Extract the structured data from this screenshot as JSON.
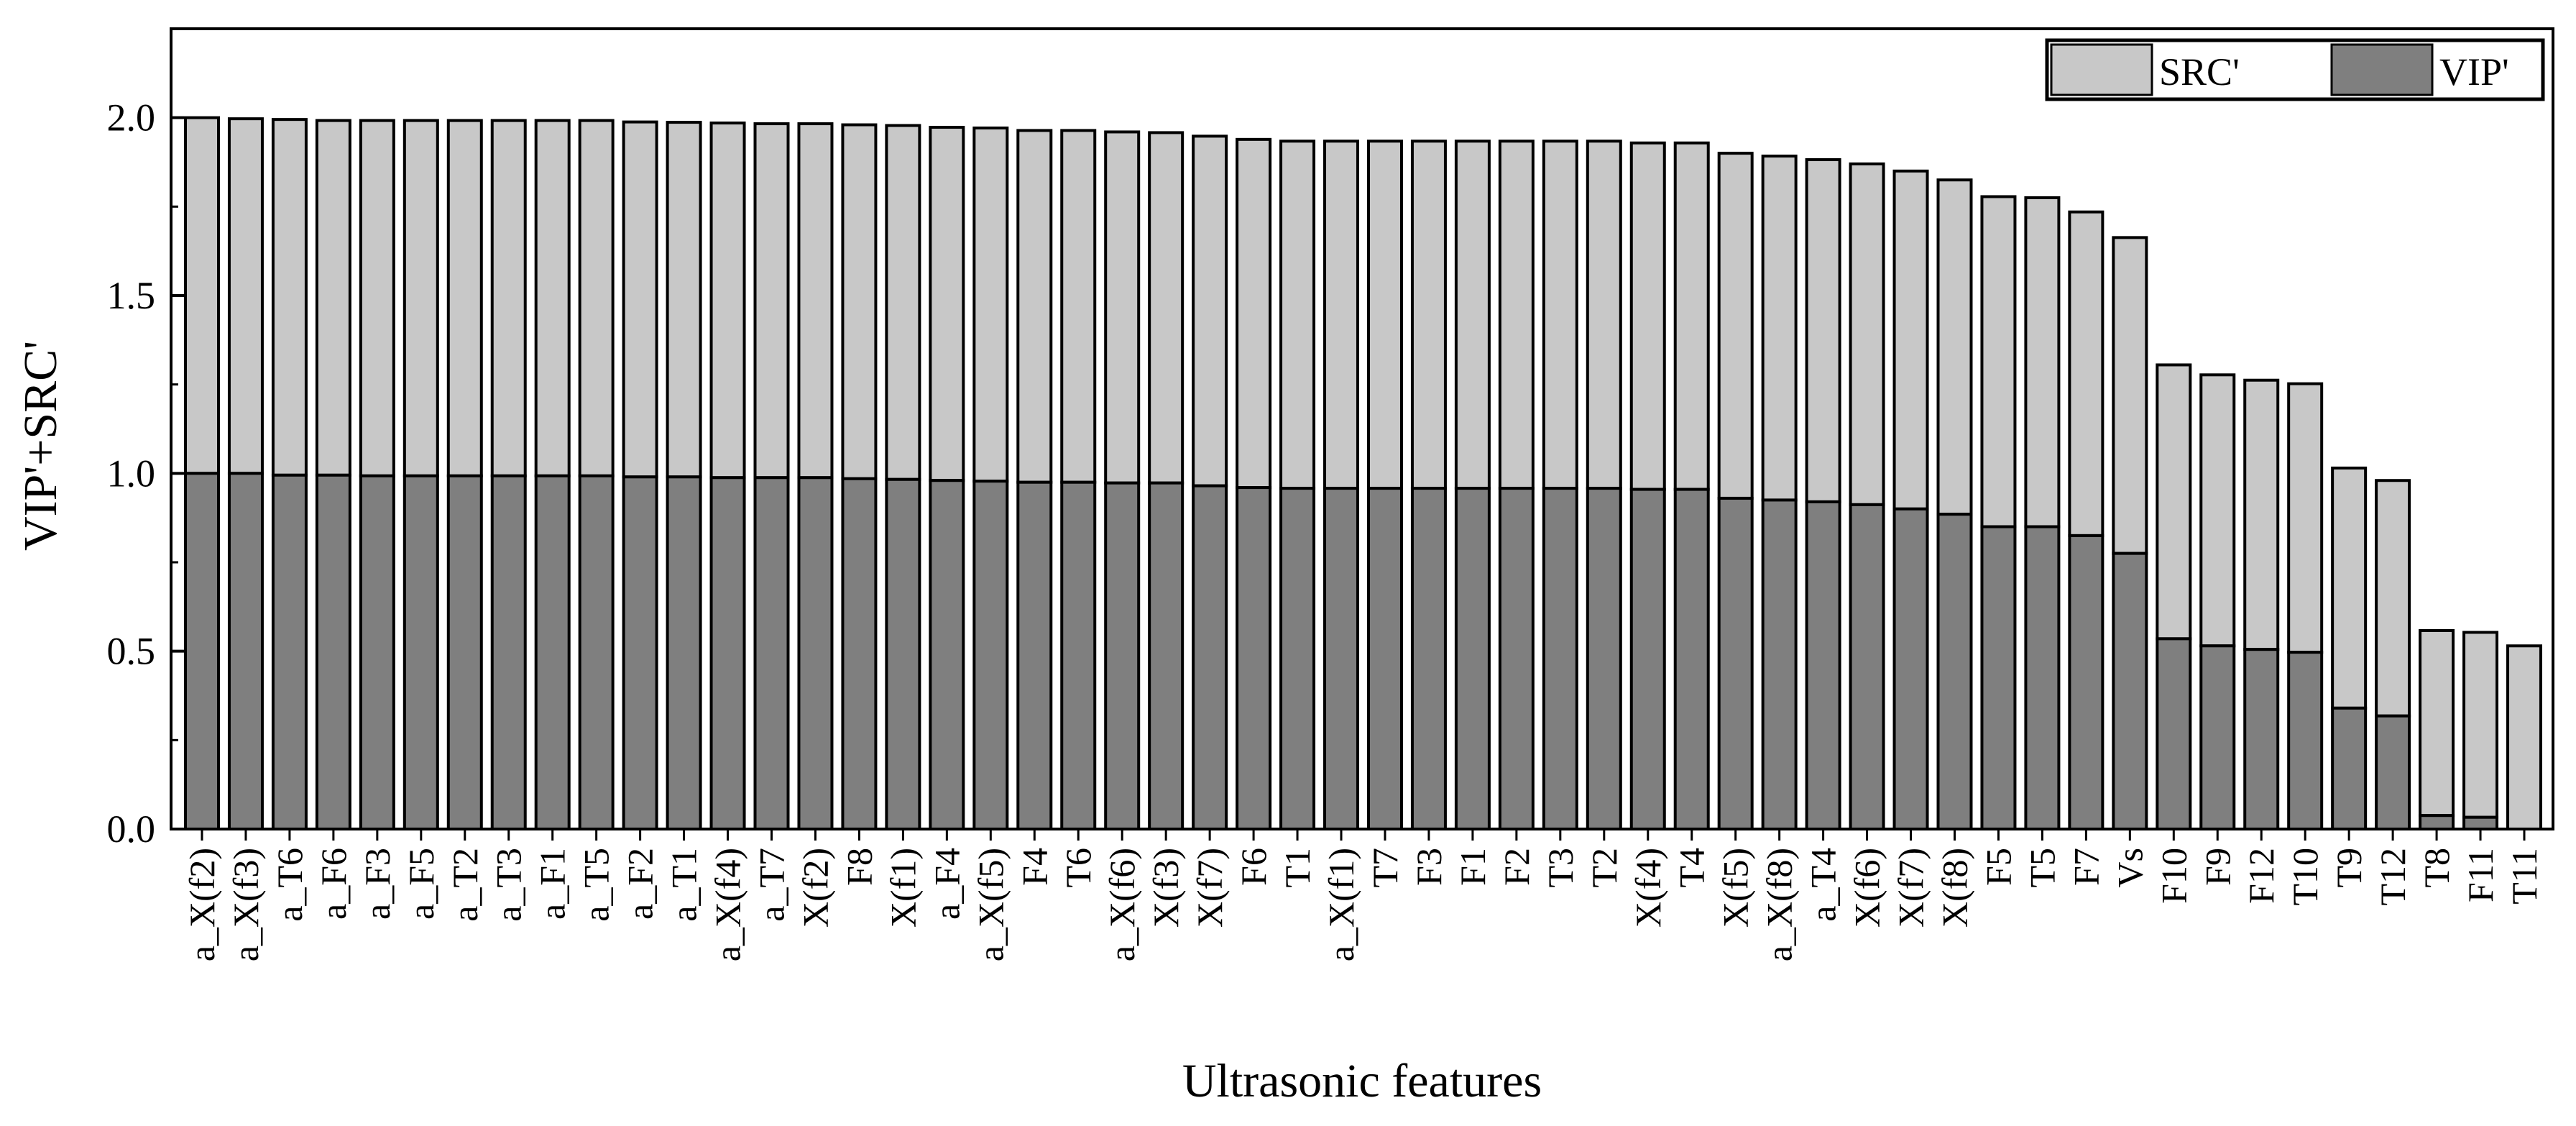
{
  "chart_data": {
    "type": "bar",
    "stacked": true,
    "title": "",
    "xlabel": "Ultrasonic features",
    "ylabel": "VIP'+SRC'",
    "ylim": [
      0,
      2.25
    ],
    "yticks": [
      "0.0",
      "0.5",
      "1.0",
      "1.5",
      "2.0"
    ],
    "grid": false,
    "legend_position": "top-right",
    "categories": [
      "a_X(f2)",
      "a_X(f3)",
      "a_T6",
      "a_F6",
      "a_F3",
      "a_F5",
      "a_T2",
      "a_T3",
      "a_F1",
      "a_T5",
      "a_F2",
      "a_T1",
      "a_X(f4)",
      "a_T7",
      "X(f2)",
      "F8",
      "X(f1)",
      "a_F4",
      "a_X(f5)",
      "F4",
      "T6",
      "a_X(f6)",
      "X(f3)",
      "X(f7)",
      "F6",
      "T1",
      "a_X(f1)",
      "T7",
      "F3",
      "F1",
      "F2",
      "T3",
      "T2",
      "X(f4)",
      "T4",
      "X(f5)",
      "a_X(f8)",
      "a_T4",
      "X(f6)",
      "X(f7)",
      "X(f8)",
      "F5",
      "T5",
      "F7",
      "Vs",
      "F10",
      "F9",
      "F12",
      "T10",
      "T9",
      "T12",
      "T8",
      "F11",
      "T11"
    ],
    "series": [
      {
        "name": "VIP'",
        "color": "#7f7f7f",
        "values": [
          1.0,
          1.0,
          0.995,
          0.995,
          0.993,
          0.993,
          0.993,
          0.993,
          0.993,
          0.993,
          0.99,
          0.99,
          0.988,
          0.988,
          0.988,
          0.985,
          0.983,
          0.98,
          0.978,
          0.975,
          0.975,
          0.973,
          0.973,
          0.965,
          0.96,
          0.958,
          0.958,
          0.958,
          0.958,
          0.958,
          0.958,
          0.958,
          0.958,
          0.955,
          0.955,
          0.93,
          0.925,
          0.92,
          0.912,
          0.9,
          0.885,
          0.85,
          0.85,
          0.825,
          0.775,
          0.535,
          0.515,
          0.505,
          0.497,
          0.34,
          0.318,
          0.038,
          0.033,
          0.0
        ]
      },
      {
        "name": "SRC'",
        "color": "#c8c8c8",
        "values": [
          1.0,
          0.997,
          1.0,
          0.997,
          0.999,
          0.999,
          0.999,
          0.999,
          0.999,
          0.999,
          0.998,
          0.997,
          0.997,
          0.995,
          0.995,
          0.995,
          0.995,
          0.993,
          0.993,
          0.989,
          0.989,
          0.987,
          0.985,
          0.983,
          0.979,
          0.976,
          0.976,
          0.976,
          0.976,
          0.976,
          0.976,
          0.976,
          0.976,
          0.974,
          0.974,
          0.97,
          0.967,
          0.962,
          0.958,
          0.95,
          0.94,
          0.928,
          0.925,
          0.91,
          0.888,
          0.77,
          0.762,
          0.757,
          0.755,
          0.675,
          0.662,
          0.52,
          0.52,
          0.515
        ]
      }
    ]
  }
}
